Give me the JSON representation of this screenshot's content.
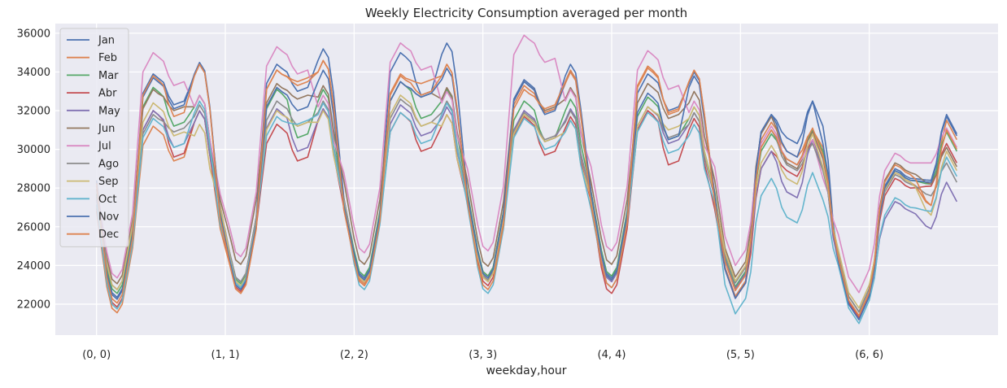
{
  "chart_data": {
    "type": "line",
    "title": "Weekly Electricity Consumption averaged per month",
    "xlabel": "weekday,hour",
    "ylabel": "",
    "xlim": [
      -8,
      175
    ],
    "ylim": [
      20400,
      36500
    ],
    "x_tick_values": [
      0,
      25,
      50,
      75,
      100,
      125,
      150
    ],
    "x_tick_labels": [
      "(0, 0)",
      "(1, 1)",
      "(2, 2)",
      "(3, 3)",
      "(4, 4)",
      "(5, 5)",
      "(6, 6)"
    ],
    "y_tick_values": [
      22000,
      24000,
      26000,
      28000,
      30000,
      32000,
      34000,
      36000
    ],
    "y_tick_labels": [
      "22000",
      "24000",
      "26000",
      "28000",
      "30000",
      "32000",
      "34000",
      "36000"
    ],
    "grid": true,
    "legend_position": "upper-left",
    "background": "#eaeaf2",
    "series": [
      {
        "name": "Jan",
        "color": "#4c72b0",
        "trough": 22200,
        "peak1": 33900,
        "mid": 32300,
        "peak2": 34600,
        "sat": [
          22400,
          31800,
          30300,
          32500,
          31200
        ],
        "sun": [
          21400,
          29000,
          28400,
          31800
        ],
        "day_peaks": [
          [
            22200,
            33900,
            32300,
            34600
          ],
          [
            23000,
            34400,
            33000,
            35400
          ],
          [
            23200,
            35000,
            32800,
            35700
          ],
          [
            23300,
            33600,
            31900,
            34600
          ],
          [
            23200,
            33900,
            32000,
            34200
          ]
        ]
      },
      {
        "name": "Feb",
        "color": "#dd8452",
        "trough": 21400,
        "peak1": 31200,
        "mid": 29400,
        "peak2": 32200,
        "sat": [
          22400,
          31400,
          29600,
          31000,
          30100
        ],
        "sun": [
          21400,
          28800,
          27100,
          31500
        ],
        "day_peaks": [
          [
            21400,
            31200,
            29400,
            32200
          ],
          [
            22400,
            34100,
            33500,
            34800
          ],
          [
            22900,
            33900,
            33400,
            34600
          ],
          [
            23300,
            33300,
            31900,
            34200
          ],
          [
            23100,
            34200,
            31900,
            34300
          ]
        ]
      },
      {
        "name": "Mar",
        "color": "#55a868",
        "trough": 22400,
        "peak1": 33200,
        "mid": 31200,
        "peak2": 33000,
        "sat": [
          22900,
          30800,
          29200,
          31000,
          29900
        ],
        "sun": [
          21600,
          28900,
          28200,
          30900
        ],
        "day_peaks": [
          [
            22400,
            33200,
            31200,
            33000
          ],
          [
            22900,
            33100,
            30600,
            33300
          ],
          [
            23300,
            33500,
            31600,
            33300
          ],
          [
            23300,
            32500,
            30400,
            32800
          ],
          [
            23300,
            32700,
            30500,
            32400
          ]
        ]
      },
      {
        "name": "Abr",
        "color": "#c44e52",
        "trough": 21700,
        "peak1": 32000,
        "mid": 29600,
        "peak2": 32200,
        "sat": [
          22300,
          29900,
          28600,
          30500,
          29000
        ],
        "sun": [
          21300,
          28500,
          28100,
          30300
        ],
        "day_peaks": [
          [
            21700,
            32000,
            29600,
            32200
          ],
          [
            22500,
            31300,
            29400,
            32300
          ],
          [
            22800,
            31900,
            29900,
            32000
          ],
          [
            22800,
            31700,
            29700,
            31900
          ],
          [
            22400,
            32000,
            29200,
            31800
          ]
        ]
      },
      {
        "name": "May",
        "color": "#8172b3",
        "trough": 22600,
        "peak1": 32000,
        "mid": 30100,
        "peak2": 32200,
        "sat": [
          22800,
          29900,
          27500,
          30500,
          29000
        ],
        "sun": [
          21200,
          27300,
          25900,
          28300
        ],
        "day_peaks": [
          [
            22600,
            32000,
            30100,
            32200
          ],
          [
            22700,
            32100,
            29900,
            32300
          ],
          [
            23000,
            32300,
            30700,
            32400
          ],
          [
            23100,
            32000,
            30400,
            32300
          ],
          [
            23000,
            32200,
            30300,
            32100
          ]
        ]
      },
      {
        "name": "Jun",
        "color": "#937860",
        "trough": 22900,
        "peak1": 33100,
        "mid": 32000,
        "peak2": 33000,
        "sat": [
          23400,
          31700,
          29000,
          30900,
          29500
        ],
        "sun": [
          21600,
          29300,
          28200,
          30100
        ],
        "day_peaks": [
          [
            22900,
            33100,
            32000,
            33000
          ],
          [
            23900,
            33400,
            32600,
            33500
          ],
          [
            23900,
            33500,
            32700,
            33400
          ],
          [
            23800,
            33500,
            32000,
            33400
          ],
          [
            23900,
            33400,
            31600,
            33200
          ]
        ]
      },
      {
        "name": "Jul",
        "color": "#da8bc3",
        "trough": 23200,
        "peak1": 35000,
        "mid": 33300,
        "peak2": 33000,
        "sat": [
          24000,
          31200,
          29200,
          30500,
          28500
        ],
        "sun": [
          22600,
          29800,
          29300,
          31100
        ],
        "day_peaks": [
          [
            23200,
            35000,
            33300,
            33000
          ],
          [
            24300,
            35300,
            33900,
            33000
          ],
          [
            24500,
            35500,
            34100,
            33200
          ],
          [
            24600,
            35900,
            34500,
            33300
          ],
          [
            24600,
            35100,
            33100,
            32700
          ]
        ]
      },
      {
        "name": "Ago",
        "color": "#8c8c8c",
        "trough": 22600,
        "peak1": 31800,
        "mid": 30900,
        "peak2": 32500,
        "sat": [
          23100,
          31000,
          28900,
          30300,
          28900
        ],
        "sun": [
          21600,
          28700,
          27600,
          29300
        ],
        "day_peaks": [
          [
            22600,
            31800,
            30900,
            32500
          ],
          [
            23000,
            32500,
            31200,
            32700
          ],
          [
            23100,
            32600,
            31200,
            32700
          ],
          [
            23100,
            31900,
            30500,
            32200
          ],
          [
            23100,
            32200,
            30600,
            32100
          ]
        ]
      },
      {
        "name": "Sep",
        "color": "#ccb974",
        "trough": 22600,
        "peak1": 32400,
        "mid": 30700,
        "peak2": 31500,
        "sat": [
          23200,
          30200,
          28200,
          30800,
          29100
        ],
        "sun": [
          21800,
          28800,
          26600,
          29900
        ],
        "day_peaks": [
          [
            22600,
            32400,
            30700,
            31500
          ],
          [
            22800,
            32000,
            31200,
            32200
          ],
          [
            23000,
            32800,
            31200,
            32000
          ],
          [
            23000,
            31800,
            30400,
            31700
          ],
          [
            23100,
            32200,
            31000,
            32400
          ]
        ]
      },
      {
        "name": "Oct",
        "color": "#64b5cd",
        "trough": 21600,
        "peak1": 31600,
        "mid": 30100,
        "peak2": 32700,
        "sat": [
          21500,
          28500,
          26200,
          28800,
          27400
        ],
        "sun": [
          21000,
          27500,
          26800,
          29600
        ],
        "day_peaks": [
          [
            21600,
            31600,
            30100,
            32700
          ],
          [
            22700,
            31700,
            31300,
            32600
          ],
          [
            22600,
            31900,
            30300,
            32600
          ],
          [
            22400,
            31600,
            30000,
            31700
          ],
          [
            22700,
            31900,
            29800,
            31500
          ]
        ]
      },
      {
        "name": "Nov",
        "color": "#4c72b0",
        "trough": 22100,
        "peak1": 33700,
        "mid": 32100,
        "peak2": 34700,
        "sat": [
          22300,
          31800,
          29600,
          32500,
          30300
        ],
        "sun": [
          21200,
          28900,
          28300,
          31700
        ],
        "day_peaks": [
          [
            22100,
            33700,
            32100,
            34700
          ],
          [
            22600,
            33200,
            32000,
            34300
          ],
          [
            23100,
            33500,
            32700,
            34400
          ],
          [
            23200,
            33500,
            31800,
            34300
          ],
          [
            23100,
            32900,
            30500,
            34000
          ]
        ]
      },
      {
        "name": "Dec",
        "color": "#dd8452",
        "trough": 21900,
        "peak1": 33800,
        "mid": 31700,
        "peak2": 34600,
        "sat": [
          22700,
          31000,
          29200,
          31100,
          29700
        ],
        "sun": [
          21400,
          29200,
          27100,
          31000
        ],
        "day_peaks": [
          [
            21900,
            33800,
            31700,
            34600
          ],
          [
            22400,
            34100,
            33300,
            34800
          ],
          [
            22800,
            33800,
            32800,
            34600
          ],
          [
            22600,
            33100,
            32100,
            34300
          ],
          [
            22700,
            34300,
            31800,
            34300
          ]
        ]
      }
    ]
  }
}
